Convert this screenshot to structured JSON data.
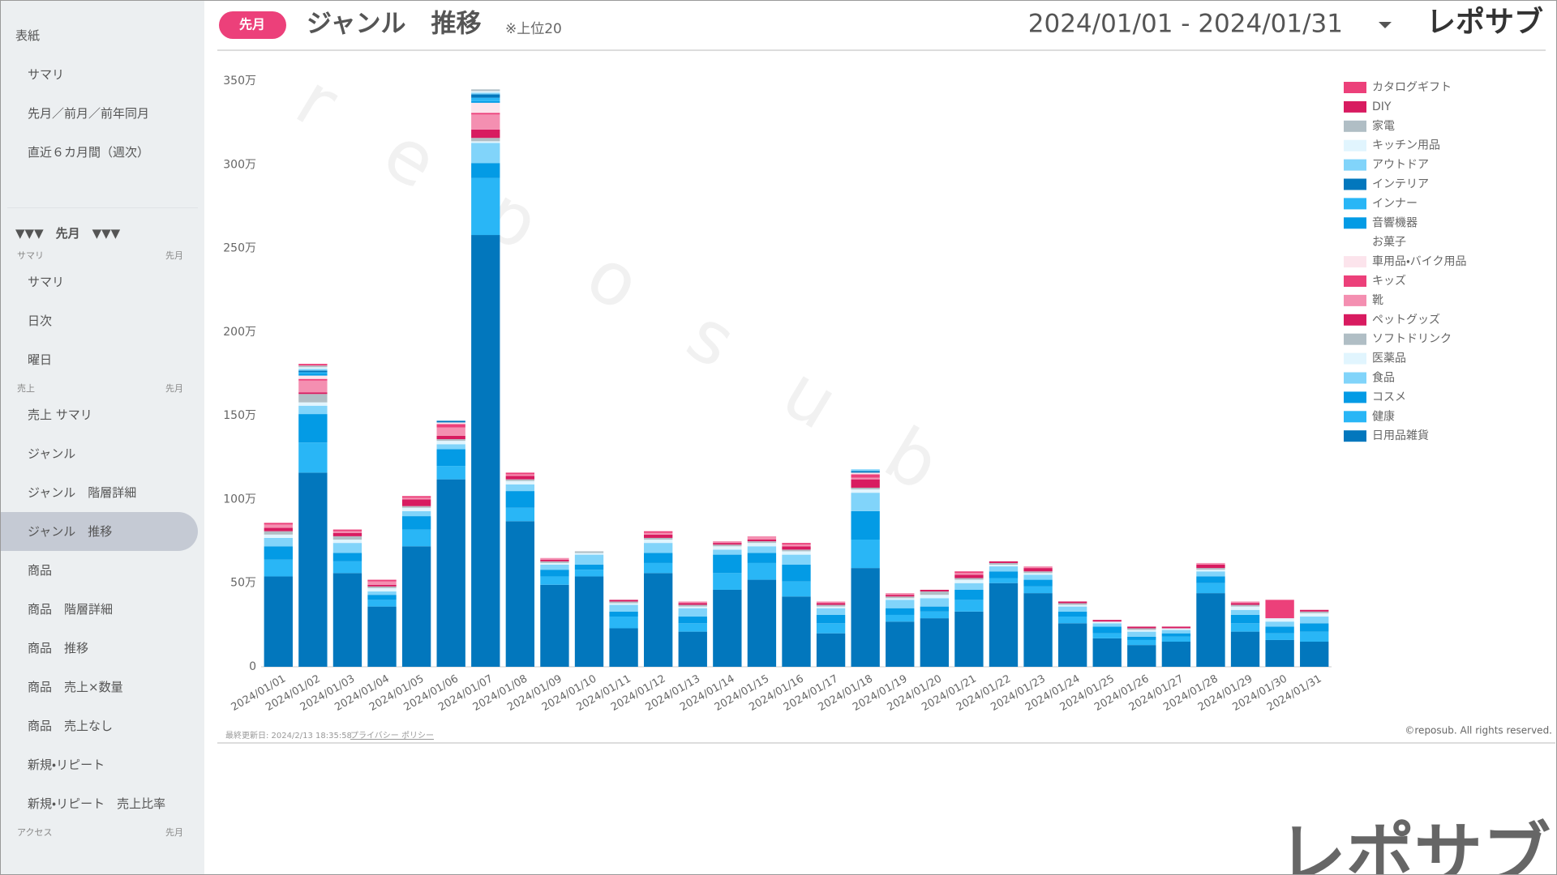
{
  "header": {
    "period_badge": "先月",
    "title": "ジャンル　推移",
    "note": "※上位20",
    "date_range": "2024/01/01 - 2024/01/31",
    "logo": "レポサブ"
  },
  "sidebar": {
    "top_items": [
      "表紙",
      "サマリ",
      "先月／前月／前年同月",
      "直近６カ月間（週次）"
    ],
    "period_header": "▼▼▼　先月　▼▼▼",
    "groups": [
      {
        "title": "サマリ",
        "period": "先月",
        "items": [
          "サマリ",
          "日次",
          "曜日"
        ]
      },
      {
        "title": "売上",
        "period": "先月",
        "items": [
          "売上 サマリ",
          "ジャンル",
          "ジャンル　階層詳細",
          "ジャンル　推移",
          "商品",
          "商品　階層詳細",
          "商品　推移",
          "商品　売上×数量",
          "商品　売上なし",
          "新規・リピート",
          "新規・リピート　売上比率"
        ]
      },
      {
        "title": "アクセス",
        "period": "先月",
        "items": []
      }
    ]
  },
  "chart_data": {
    "type": "stacked-bar",
    "categories": [
      "2024/01/01",
      "2024/01/02",
      "2024/01/03",
      "2024/01/04",
      "2024/01/05",
      "2024/01/06",
      "2024/01/07",
      "2024/01/08",
      "2024/01/09",
      "2024/01/10",
      "2024/01/11",
      "2024/01/12",
      "2024/01/13",
      "2024/01/14",
      "2024/01/15",
      "2024/01/16",
      "2024/01/17",
      "2024/01/18",
      "2024/01/19",
      "2024/01/20",
      "2024/01/21",
      "2024/01/22",
      "2024/01/23",
      "2024/01/24",
      "2024/01/25",
      "2024/01/26",
      "2024/01/27",
      "2024/01/28",
      "2024/01/29",
      "2024/01/30",
      "2024/01/31"
    ],
    "ylim": [
      0,
      350
    ],
    "yticks": [
      {
        "value": 0,
        "label": "0"
      },
      {
        "value": 50,
        "label": "50万"
      },
      {
        "value": 100,
        "label": "100万"
      },
      {
        "value": 150,
        "label": "150万"
      },
      {
        "value": 200,
        "label": "200万"
      },
      {
        "value": 250,
        "label": "250万"
      },
      {
        "value": 300,
        "label": "300万"
      },
      {
        "value": 350,
        "label": "350万"
      }
    ],
    "grid": false,
    "legend": "top-right",
    "series": [
      {
        "name": "カタログギフト",
        "color": "#ec407a",
        "values": [
          0,
          1,
          0,
          0,
          0,
          0,
          0,
          0,
          0,
          0,
          0,
          0,
          0,
          0,
          0,
          0,
          0,
          0,
          0,
          0,
          0,
          0,
          0,
          0,
          0,
          0,
          0,
          0,
          0,
          11,
          0
        ]
      },
      {
        "name": "DIY",
        "color": "#d81b60",
        "values": [
          0,
          0,
          0,
          0,
          0,
          0,
          0,
          0,
          0,
          0,
          0,
          0,
          0,
          0,
          0,
          0,
          0,
          0,
          0,
          0,
          0,
          0,
          0,
          0,
          0,
          0,
          0,
          0,
          0,
          0,
          0
        ]
      },
      {
        "name": "家電",
        "color": "#b0bec5",
        "values": [
          0,
          1,
          0,
          0,
          0,
          0,
          1,
          0,
          0,
          0,
          0,
          0,
          0,
          0,
          0,
          0,
          0,
          0,
          0,
          0,
          0,
          0,
          0,
          0,
          0,
          0,
          0,
          0,
          0,
          0,
          0
        ]
      },
      {
        "name": "キッチン用品",
        "color": "#e1f5fe",
        "values": [
          0,
          1,
          0,
          0,
          0,
          0,
          1,
          0,
          0,
          0,
          0,
          0,
          0,
          0,
          0,
          0,
          0,
          0,
          0,
          0,
          0,
          0,
          0,
          0,
          0,
          0,
          0,
          0,
          0,
          0,
          0
        ]
      },
      {
        "name": "アウトドア",
        "color": "#81d4fa",
        "values": [
          0,
          1,
          0,
          0,
          0,
          0,
          1,
          0,
          0,
          0,
          0,
          0,
          0,
          0,
          0,
          0,
          0,
          1,
          0,
          0,
          0,
          0,
          0,
          0,
          0,
          0,
          0,
          0,
          0,
          0,
          0
        ]
      },
      {
        "name": "インテリア",
        "color": "#0277bd",
        "values": [
          0,
          1,
          0,
          0,
          0,
          1,
          2,
          0,
          0,
          0,
          0,
          0,
          0,
          0,
          0,
          0,
          0,
          1,
          0,
          0,
          0,
          0,
          0,
          0,
          0,
          0,
          0,
          0,
          0,
          0,
          0
        ]
      },
      {
        "name": "インナー",
        "color": "#29b6f6",
        "values": [
          0,
          1,
          0,
          0,
          0,
          0,
          2,
          0,
          0,
          0,
          0,
          0,
          0,
          0,
          0,
          0,
          0,
          0,
          0,
          0,
          0,
          0,
          0,
          0,
          0,
          0,
          0,
          0,
          0,
          0,
          0
        ]
      },
      {
        "name": "音響機器",
        "color": "#039be5",
        "values": [
          0,
          1,
          0,
          0,
          0,
          0,
          1,
          0,
          0,
          0,
          0,
          0,
          0,
          0,
          0,
          0,
          0,
          0,
          0,
          0,
          0,
          0,
          0,
          0,
          0,
          0,
          0,
          0,
          0,
          0,
          0
        ]
      },
      {
        "name": "お菓子",
        "color": "#ffffff",
        "values": [
          0,
          0,
          0,
          0,
          0,
          0,
          0,
          0,
          0,
          0,
          0,
          0,
          0,
          0,
          0,
          0,
          0,
          0,
          0,
          0,
          0,
          0,
          0,
          0,
          0,
          0,
          0,
          0,
          0,
          0,
          0
        ]
      },
      {
        "name": "車用品・バイク用品",
        "color": "#fce4ec",
        "values": [
          0,
          2,
          0,
          0,
          0,
          1,
          6,
          0,
          0,
          0,
          0,
          0,
          0,
          0,
          0,
          0,
          0,
          1,
          0,
          0,
          0,
          0,
          0,
          0,
          0,
          0,
          0,
          0,
          0,
          0,
          0
        ]
      },
      {
        "name": "キッズ",
        "color": "#ec407a",
        "values": [
          1,
          1,
          1,
          1,
          1,
          2,
          1,
          1,
          0,
          0,
          0,
          1,
          0,
          0,
          0,
          1,
          0,
          2,
          0,
          0,
          1,
          0,
          0,
          0,
          0,
          0,
          0,
          0,
          0,
          0,
          0
        ]
      },
      {
        "name": "靴",
        "color": "#f48fb1",
        "values": [
          2,
          7,
          1,
          2,
          1,
          5,
          9,
          1,
          1,
          0,
          0,
          1,
          1,
          1,
          2,
          1,
          1,
          1,
          1,
          0,
          1,
          0,
          1,
          0,
          0,
          0,
          0,
          1,
          1,
          0,
          0
        ]
      },
      {
        "name": "ペットグッズ",
        "color": "#d81b60",
        "values": [
          2,
          1,
          2,
          1,
          4,
          2,
          5,
          2,
          1,
          0,
          1,
          2,
          1,
          1,
          1,
          2,
          1,
          5,
          1,
          1,
          2,
          1,
          2,
          1,
          1,
          1,
          1,
          2,
          1,
          0,
          1
        ]
      },
      {
        "name": "ソフトドリンク",
        "color": "#b0bec5",
        "values": [
          2,
          5,
          2,
          1,
          1,
          1,
          2,
          1,
          1,
          1,
          1,
          1,
          1,
          1,
          1,
          1,
          1,
          1,
          1,
          2,
          1,
          1,
          1,
          1,
          0,
          1,
          0,
          1,
          1,
          0,
          1
        ]
      },
      {
        "name": "医薬品",
        "color": "#e1f5fe",
        "values": [
          2,
          2,
          2,
          2,
          2,
          2,
          1,
          2,
          1,
          1,
          1,
          2,
          1,
          2,
          2,
          2,
          1,
          2,
          1,
          2,
          2,
          1,
          1,
          1,
          1,
          1,
          1,
          1,
          2,
          2,
          2
        ]
      },
      {
        "name": "食品",
        "color": "#81d4fa",
        "values": [
          5,
          5,
          6,
          2,
          3,
          3,
          12,
          4,
          3,
          6,
          4,
          6,
          5,
          3,
          4,
          6,
          4,
          11,
          5,
          5,
          4,
          3,
          3,
          3,
          2,
          3,
          2,
          3,
          3,
          3,
          4
        ]
      },
      {
        "name": "コスメ",
        "color": "#039be5",
        "values": [
          8,
          17,
          5,
          3,
          8,
          10,
          9,
          10,
          4,
          3,
          3,
          6,
          4,
          11,
          6,
          10,
          5,
          17,
          4,
          3,
          6,
          4,
          4,
          3,
          4,
          2,
          2,
          4,
          5,
          4,
          5
        ]
      },
      {
        "name": "健康",
        "color": "#29b6f6",
        "values": [
          10,
          18,
          7,
          4,
          10,
          8,
          34,
          8,
          5,
          4,
          7,
          6,
          5,
          10,
          10,
          9,
          6,
          17,
          4,
          4,
          7,
          3,
          4,
          4,
          3,
          3,
          3,
          6,
          5,
          4,
          6
        ]
      },
      {
        "name": "日用品雑貨",
        "color": "#0277bd",
        "values": [
          54,
          116,
          56,
          36,
          72,
          112,
          258,
          87,
          49,
          54,
          23,
          56,
          21,
          46,
          52,
          42,
          20,
          59,
          27,
          29,
          33,
          50,
          44,
          26,
          17,
          13,
          15,
          44,
          21,
          16,
          15
        ]
      }
    ]
  },
  "footer": {
    "updated": "最終更新日: 2024/2/13 18:35:58",
    "privacy": "プライバシー ポリシー",
    "copyright": "©reposub. All rights reserved.",
    "watermark": "reposub",
    "big_logo": "レポサブ"
  }
}
